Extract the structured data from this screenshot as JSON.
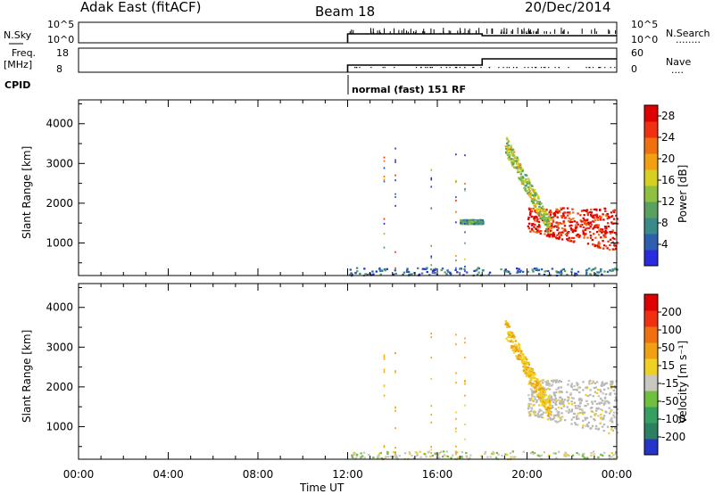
{
  "header": {
    "station": "Adak East (fitACF)",
    "beam": "Beam 18",
    "date": "20/Dec/2014"
  },
  "panels": {
    "nsky": {
      "left_label": "N.Sky",
      "left_ticks": [
        "10^5",
        "10^0"
      ],
      "right_ticks": [
        "10^5",
        "10^0"
      ],
      "right_label": "N.Search",
      "right_legend": "........"
    },
    "freq": {
      "left_label_top": "Freq.",
      "left_label_bottom": "[MHz]",
      "left_ticks": [
        "18",
        "8"
      ],
      "right_ticks": [
        "60",
        "0"
      ],
      "right_label": "Nave",
      "right_legend": "...."
    },
    "cpid": {
      "label": "CPID",
      "program": "normal (fast) 151 RF"
    }
  },
  "colors": {
    "power_scale": [
      "#2a2ae0",
      "#2c5fb0",
      "#3a8a8a",
      "#5aa060",
      "#8fc040",
      "#d8d020",
      "#f0a010",
      "#f07010",
      "#f03010",
      "#e00000"
    ],
    "velocity_scale": [
      "#2535c8",
      "#2a8060",
      "#35a060",
      "#70c040",
      "#c8c8c0",
      "#f0d020",
      "#f0a010",
      "#f07010",
      "#f03010",
      "#e00000"
    ],
    "ground_scatter": "#b8b8b8"
  },
  "chart_data": [
    {
      "type": "heatmap",
      "title": "Power",
      "ylabel": "Slant Range [km]",
      "xlabel": "Time UT",
      "x_ticks": [
        "00:00",
        "04:00",
        "08:00",
        "12:00",
        "16:00",
        "20:00",
        "00:00"
      ],
      "xlim_hours": [
        0,
        24
      ],
      "y_ticks": [
        1000,
        2000,
        3000,
        4000
      ],
      "ylim_km": [
        180,
        4600
      ],
      "colorbar": {
        "label": "Power [dB]",
        "ticks": [
          4,
          8,
          12,
          16,
          20,
          24,
          28
        ],
        "range": [
          0,
          30
        ]
      },
      "regions": [
        {
          "desc": "E-region band",
          "t": [
            12,
            24
          ],
          "r": [
            200,
            400
          ],
          "value": 6,
          "density": 0.35
        },
        {
          "desc": "main ionospheric",
          "t": [
            20,
            24
          ],
          "r": [
            800,
            1900
          ],
          "value": 27,
          "density": 0.85
        },
        {
          "desc": "arc",
          "t": [
            19,
            21
          ],
          "r": [
            1400,
            3500
          ],
          "value": 14,
          "density": 0.6
        },
        {
          "desc": "patch",
          "t": [
            17,
            18
          ],
          "r": [
            1500,
            1600
          ],
          "value": 9,
          "density": 0.8
        }
      ]
    },
    {
      "type": "heatmap",
      "title": "Velocity",
      "ylabel": "Slant Range [km]",
      "xlabel": "Time UT",
      "x_ticks": [
        "00:00",
        "04:00",
        "08:00",
        "12:00",
        "16:00",
        "20:00",
        "00:00"
      ],
      "xlim_hours": [
        0,
        24
      ],
      "y_ticks": [
        1000,
        2000,
        3000,
        4000
      ],
      "ylim_km": [
        180,
        4600
      ],
      "colorbar": {
        "label": "Velocity [m s⁻¹]",
        "ticks": [
          "200",
          "100",
          "50",
          "15",
          "-15",
          "-50",
          "-100",
          "-200"
        ],
        "range": [
          -250,
          250
        ]
      },
      "regions": [
        {
          "desc": "ground scatter",
          "t": [
            20,
            24
          ],
          "r": [
            800,
            2200
          ],
          "value": 0,
          "density": 0.9
        },
        {
          "desc": "arc",
          "t": [
            19,
            21
          ],
          "r": [
            1400,
            3500
          ],
          "value": 40,
          "density": 0.6
        },
        {
          "desc": "E-region band",
          "t": [
            12,
            24
          ],
          "r": [
            200,
            400
          ],
          "value": -30,
          "density": 0.35
        }
      ]
    }
  ]
}
